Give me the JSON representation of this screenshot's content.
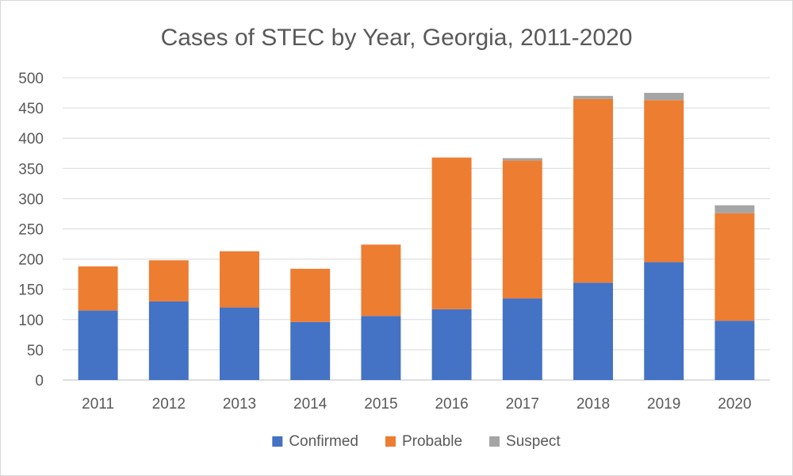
{
  "chart_data": {
    "type": "bar",
    "stacked": true,
    "title": "Cases of STEC by Year, Georgia, 2011-2020",
    "xlabel": "",
    "ylabel": "",
    "categories": [
      "2011",
      "2012",
      "2013",
      "2014",
      "2015",
      "2016",
      "2017",
      "2018",
      "2019",
      "2020"
    ],
    "series": [
      {
        "name": "Confirmed",
        "color": "#4472C4",
        "values": [
          115,
          130,
          120,
          96,
          106,
          117,
          135,
          161,
          195,
          98
        ]
      },
      {
        "name": "Probable",
        "color": "#ED7D31",
        "values": [
          73,
          68,
          93,
          88,
          118,
          251,
          228,
          304,
          268,
          178
        ]
      },
      {
        "name": "Suspect",
        "color": "#A5A5A5",
        "values": [
          0,
          0,
          0,
          0,
          0,
          0,
          4,
          5,
          12,
          13
        ]
      }
    ],
    "ylim": [
      0,
      500
    ],
    "yticks": [
      "0",
      "50",
      "100",
      "150",
      "200",
      "250",
      "300",
      "350",
      "400",
      "450",
      "500"
    ],
    "grid": true,
    "legend_position": "bottom"
  }
}
